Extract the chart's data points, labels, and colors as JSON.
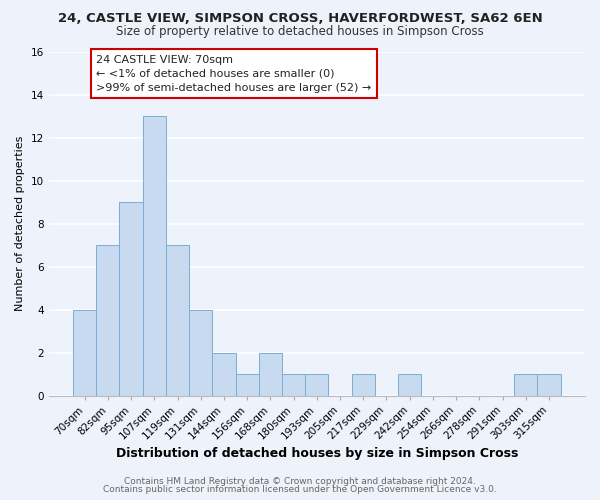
{
  "title": "24, CASTLE VIEW, SIMPSON CROSS, HAVERFORDWEST, SA62 6EN",
  "subtitle": "Size of property relative to detached houses in Simpson Cross",
  "xlabel": "Distribution of detached houses by size in Simpson Cross",
  "ylabel": "Number of detached properties",
  "bar_color": "#c8daf0",
  "bar_edge_color": "#7aaed4",
  "categories": [
    "70sqm",
    "82sqm",
    "95sqm",
    "107sqm",
    "119sqm",
    "131sqm",
    "144sqm",
    "156sqm",
    "168sqm",
    "180sqm",
    "193sqm",
    "205sqm",
    "217sqm",
    "229sqm",
    "242sqm",
    "254sqm",
    "266sqm",
    "278sqm",
    "291sqm",
    "303sqm",
    "315sqm"
  ],
  "values": [
    4,
    7,
    9,
    13,
    7,
    4,
    2,
    1,
    2,
    1,
    1,
    0,
    1,
    0,
    1,
    0,
    0,
    0,
    0,
    1,
    1
  ],
  "ylim": [
    0,
    16
  ],
  "yticks": [
    0,
    2,
    4,
    6,
    8,
    10,
    12,
    14,
    16
  ],
  "annotation_line1": "24 CASTLE VIEW: 70sqm",
  "annotation_line2": "← <1% of detached houses are smaller (0)",
  "annotation_line3": ">99% of semi-detached houses are larger (52) →",
  "footer_line1": "Contains HM Land Registry data © Crown copyright and database right 2024.",
  "footer_line2": "Contains public sector information licensed under the Open Government Licence v3.0.",
  "background_color": "#eef2fa",
  "grid_color": "#ffffff",
  "title_fontsize": 9.5,
  "subtitle_fontsize": 8.5,
  "xlabel_fontsize": 9,
  "ylabel_fontsize": 8,
  "tick_fontsize": 7.5,
  "annotation_fontsize": 8,
  "footer_fontsize": 6.5
}
